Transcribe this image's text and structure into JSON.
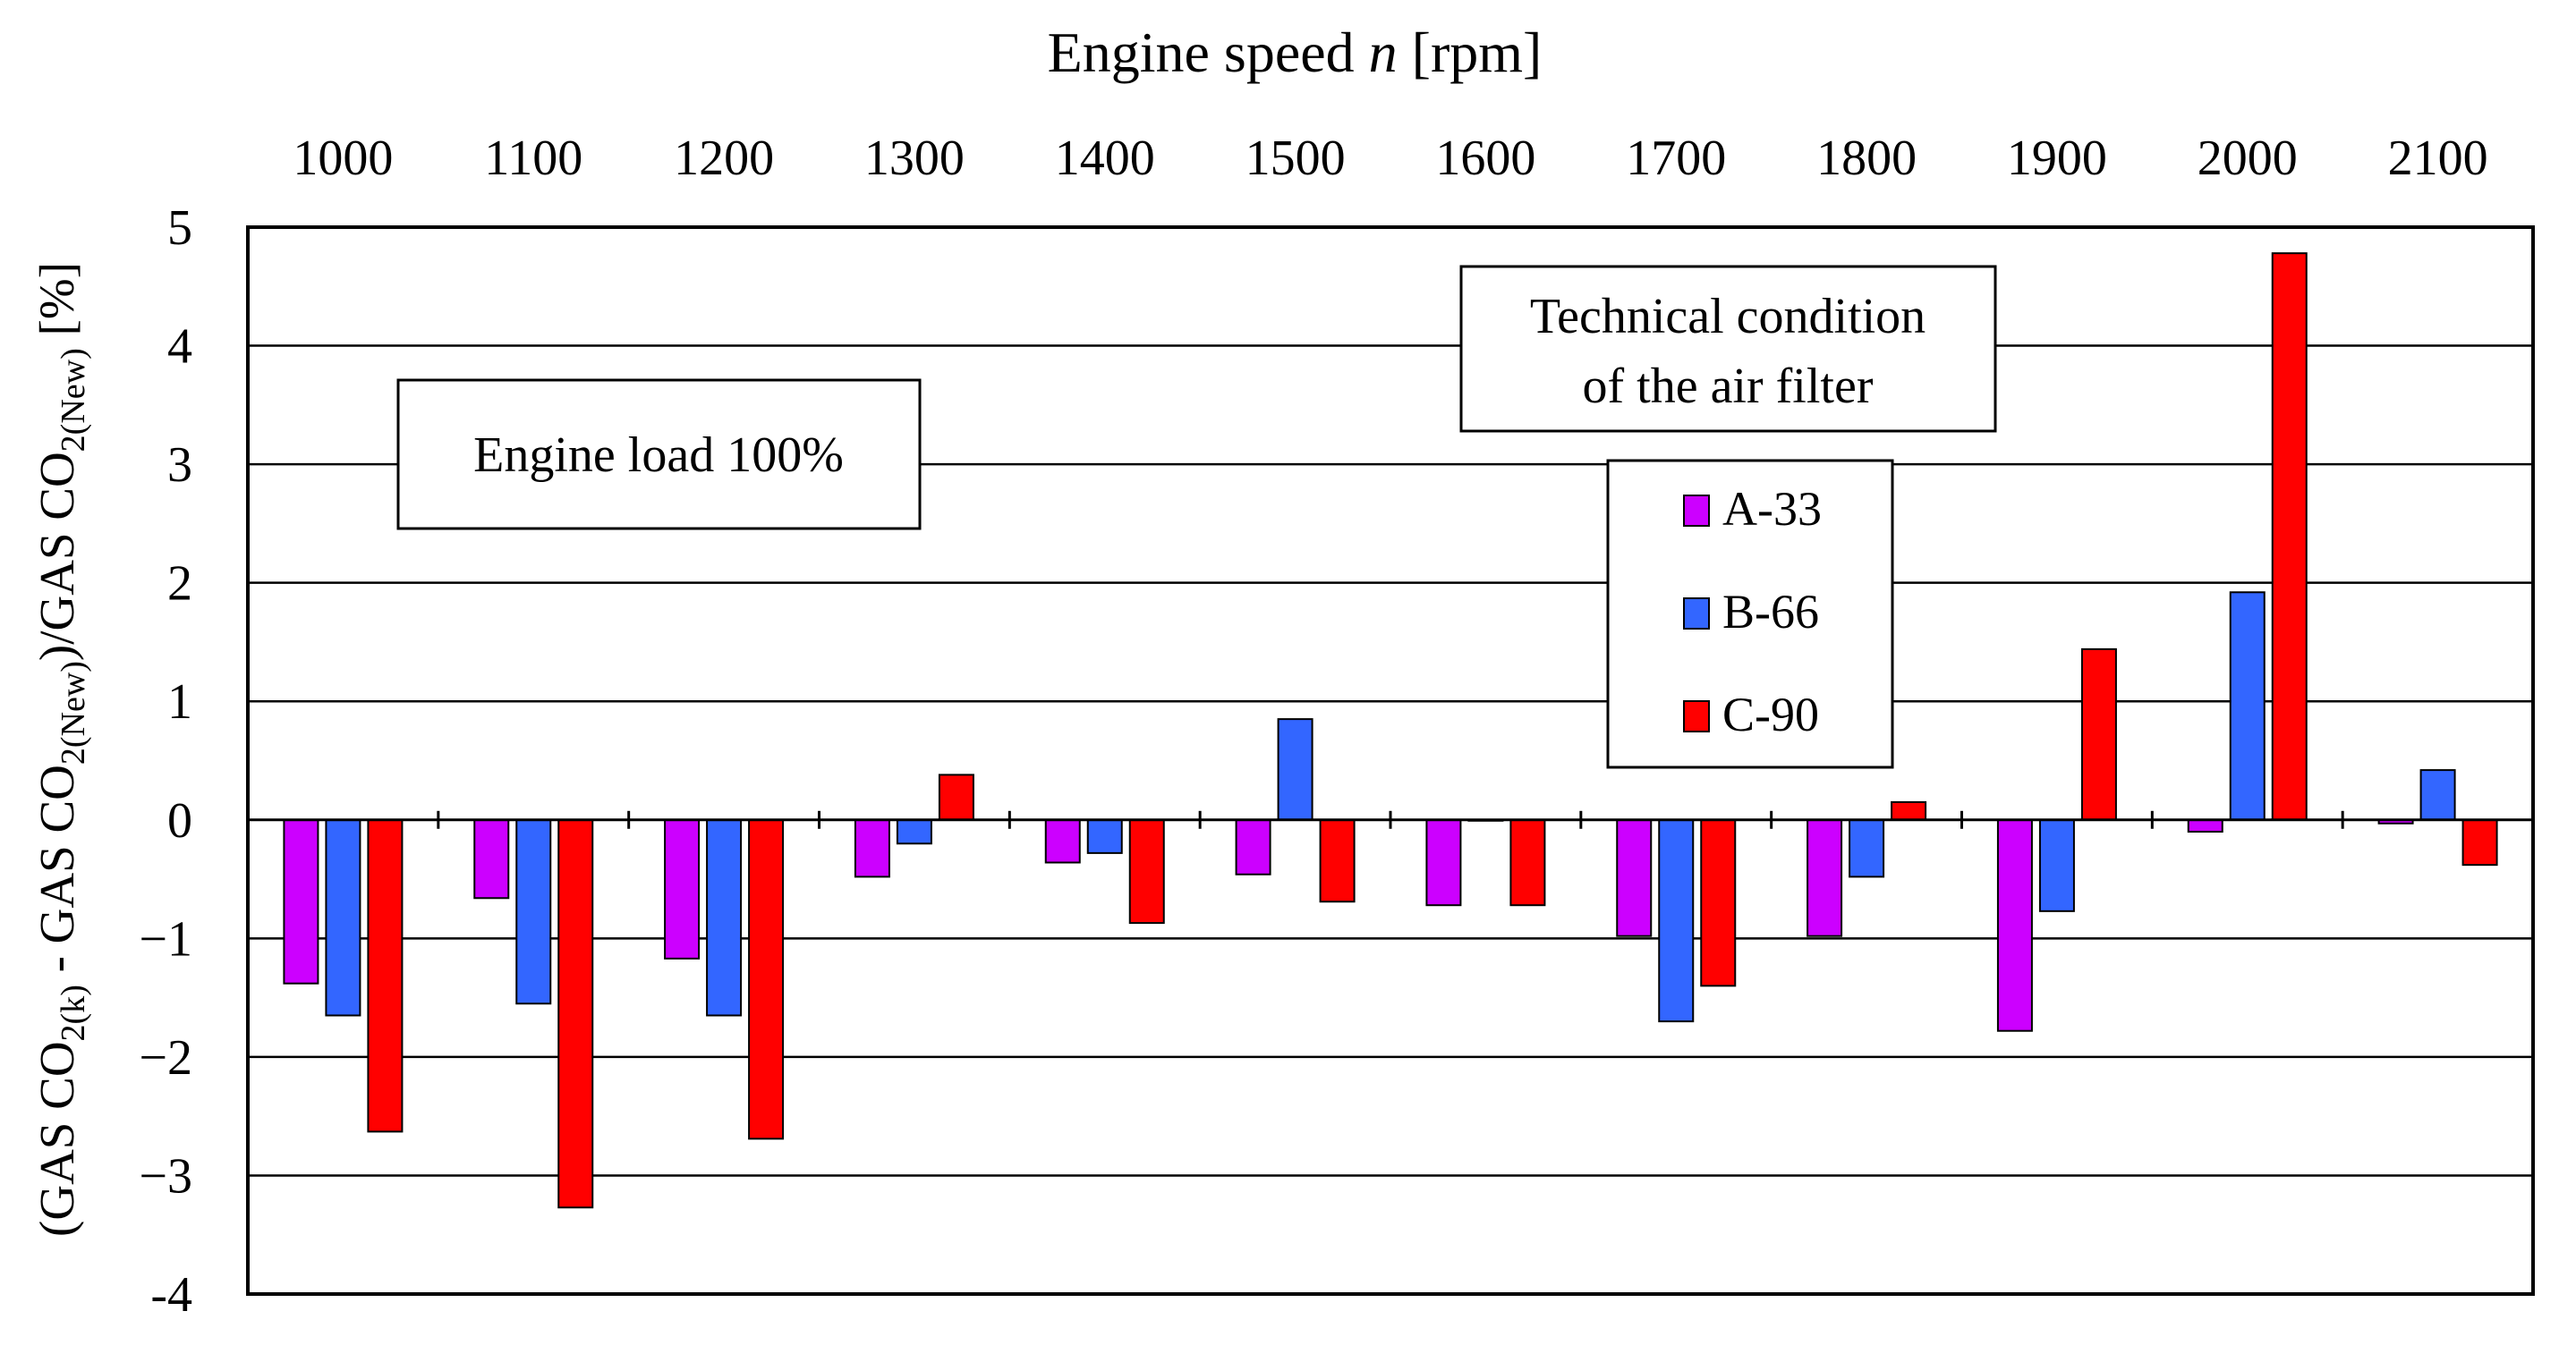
{
  "chart_data": {
    "type": "bar",
    "title": "Engine speed n [rpm]",
    "xlabel": "Engine speed n [rpm]",
    "xlabel_prefix": "Engine speed ",
    "xlabel_var": "n",
    "xlabel_unit": " [rpm]",
    "ylabel_parts": [
      "(GAS CO",
      "2(k)",
      " - GAS CO",
      "2(New)",
      ")/GAS CO",
      "2(New)",
      " [%]"
    ],
    "categories": [
      "1000",
      "1100",
      "1200",
      "1300",
      "1400",
      "1500",
      "1600",
      "1700",
      "1800",
      "1900",
      "2000",
      "2100"
    ],
    "ylim": [
      -4,
      5
    ],
    "yticks": [
      5,
      4,
      3,
      2,
      1,
      0,
      -1,
      -2,
      -3,
      -4
    ],
    "ytick_labels": [
      "5",
      "4",
      "3",
      "2",
      "1",
      "0",
      "−1",
      "−2",
      "−3",
      "-4"
    ],
    "grid": true,
    "series": [
      {
        "name": "A-33",
        "color": "#cc00ff",
        "values": [
          -1.38,
          -0.66,
          -1.17,
          -0.48,
          -0.36,
          -0.46,
          -0.72,
          -0.98,
          -0.98,
          -1.78,
          -0.1,
          -0.03
        ]
      },
      {
        "name": "B-66",
        "color": "#3366ff",
        "values": [
          -1.65,
          -1.55,
          -1.65,
          -0.2,
          -0.28,
          0.85,
          0.0,
          -1.7,
          -0.48,
          -0.77,
          1.92,
          0.42
        ]
      },
      {
        "name": "C-90",
        "color": "#ff0000",
        "values": [
          -2.63,
          -3.27,
          -2.69,
          0.38,
          -0.87,
          -0.69,
          -0.72,
          -1.4,
          0.15,
          1.44,
          4.78,
          -0.38
        ]
      }
    ],
    "annotations": [
      {
        "id": "load",
        "lines": [
          "Engine load 100%"
        ]
      },
      {
        "id": "condition",
        "lines": [
          "Technical condition",
          "of the air filter"
        ]
      }
    ],
    "legend_position": "upper-right"
  }
}
